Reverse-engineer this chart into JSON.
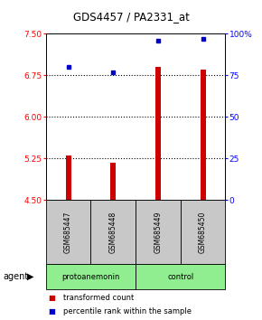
{
  "title": "GDS4457 / PA2331_at",
  "samples": [
    "GSM685447",
    "GSM685448",
    "GSM685449",
    "GSM685450"
  ],
  "red_values": [
    5.3,
    5.18,
    6.9,
    6.85
  ],
  "blue_values": [
    80,
    77,
    96,
    97
  ],
  "ylim_left": [
    4.5,
    7.5
  ],
  "ylim_right": [
    0,
    100
  ],
  "left_ticks": [
    4.5,
    5.25,
    6.0,
    6.75,
    7.5
  ],
  "right_ticks": [
    0,
    25,
    50,
    75,
    100
  ],
  "right_tick_labels": [
    "0",
    "25",
    "50",
    "75",
    "100%"
  ],
  "hlines": [
    5.25,
    6.0,
    6.75
  ],
  "bar_color": "#CC0000",
  "dot_color": "#0000CC",
  "bar_width": 0.12,
  "legend_items": [
    {
      "color": "#CC0000",
      "label": "transformed count"
    },
    {
      "color": "#0000CC",
      "label": "percentile rank within the sample"
    }
  ],
  "agent_label": "agent",
  "sample_bg": "#c8c8c8",
  "group_bg": "#90EE90"
}
